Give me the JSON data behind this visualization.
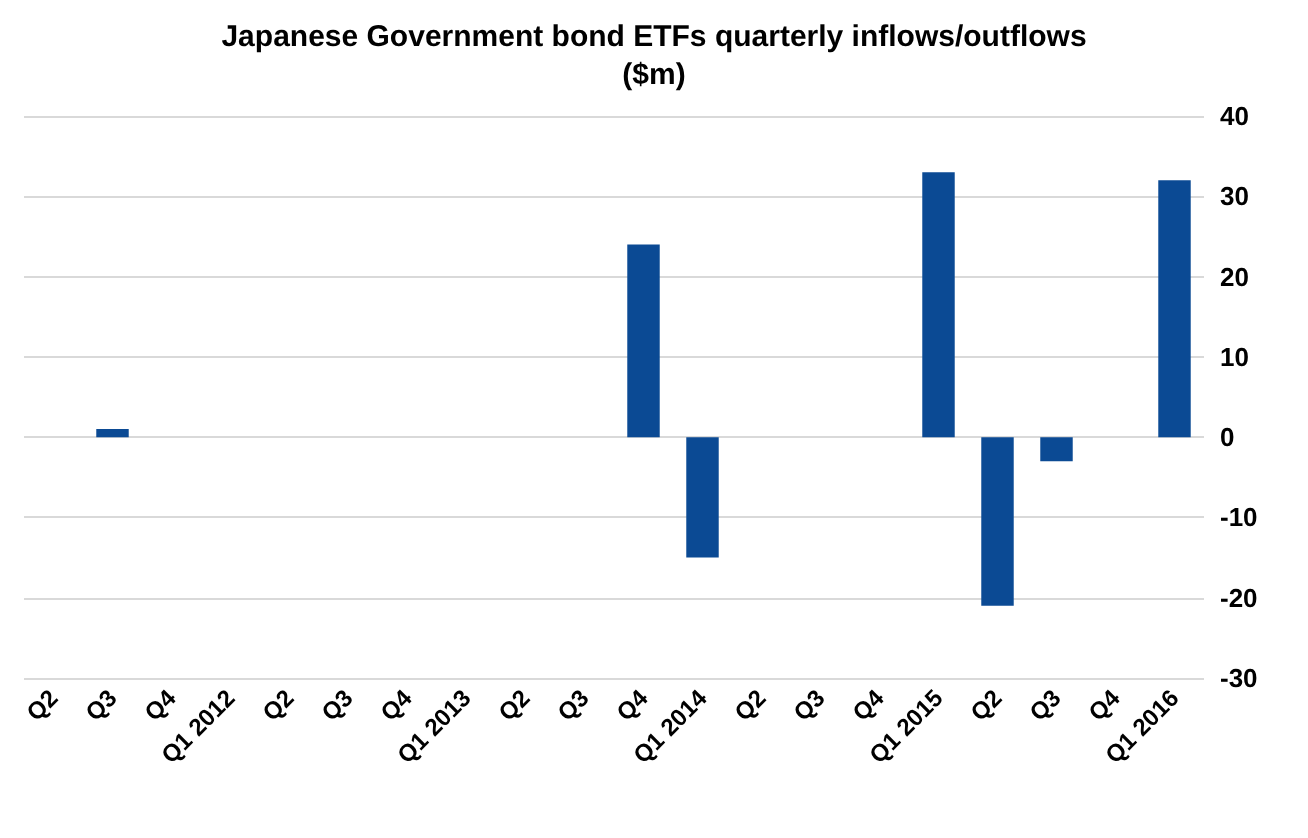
{
  "chart_data": {
    "type": "bar",
    "title": "Japanese Government bond ETFs quarterly inflows/outflows\n($m)",
    "categories": [
      "Q2",
      "Q3",
      "Q4",
      "Q1 2012",
      "Q2",
      "Q3",
      "Q4",
      "Q1 2013",
      "Q2",
      "Q3",
      "Q4",
      "Q1 2014",
      "Q2",
      "Q3",
      "Q4",
      "Q1 2015",
      "Q2",
      "Q3",
      "Q4",
      "Q1 2016"
    ],
    "values": [
      0,
      1,
      0,
      0,
      0,
      0,
      0,
      0,
      0,
      0,
      24,
      -15,
      0,
      0,
      0,
      33,
      -21,
      -3,
      0,
      32
    ],
    "color": "#0b4a94",
    "ylim": [
      -30,
      40
    ],
    "yticks": [
      -30,
      -20,
      -10,
      0,
      10,
      20,
      30,
      40
    ],
    "grid": "y"
  }
}
